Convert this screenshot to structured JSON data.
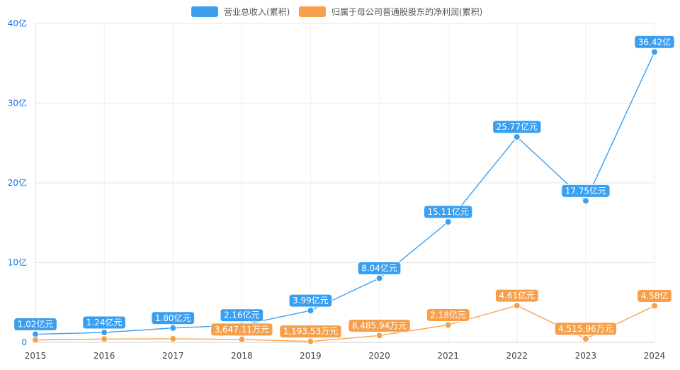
{
  "chart_data": {
    "type": "line",
    "title": "",
    "xlabel": "",
    "ylabel": "",
    "categories": [
      "2015",
      "2016",
      "2017",
      "2018",
      "2019",
      "2020",
      "2021",
      "2022",
      "2023",
      "2024"
    ],
    "y_ticks": [
      {
        "value": 0,
        "label": "0"
      },
      {
        "value": 10,
        "label": "10亿"
      },
      {
        "value": 20,
        "label": "20亿"
      },
      {
        "value": 30,
        "label": "30亿"
      },
      {
        "value": 40,
        "label": "40亿"
      }
    ],
    "ylim": [
      0,
      40
    ],
    "y_unit": "亿",
    "grid": true,
    "legend_position": "top-center",
    "series": [
      {
        "name": "营业总收入(累积)",
        "color": "#3b9ff0",
        "values": [
          1.02,
          1.24,
          1.8,
          2.16,
          3.99,
          8.04,
          15.11,
          25.77,
          17.75,
          36.42
        ],
        "labels": [
          "1.02亿元",
          "1.24亿元",
          "1.80亿元",
          "2.16亿元",
          "3.99亿元",
          "8.04亿元",
          "15.11亿元",
          "25.77亿元",
          "17.75亿元",
          "36.42亿"
        ]
      },
      {
        "name": "归属于母公司普通股股东的净利润(累积)",
        "color": "#f7a04b",
        "values": [
          0.3,
          0.42,
          0.45,
          0.3647,
          0.1194,
          0.8486,
          2.18,
          4.61,
          0.4516,
          4.58
        ],
        "labels": [
          "",
          "",
          "",
          "3,647.11万元",
          "1,193.53万元",
          "8,485.94万元",
          "2.18亿元",
          "4.61亿元",
          "4,515.96万元",
          "4.58亿"
        ]
      }
    ]
  }
}
